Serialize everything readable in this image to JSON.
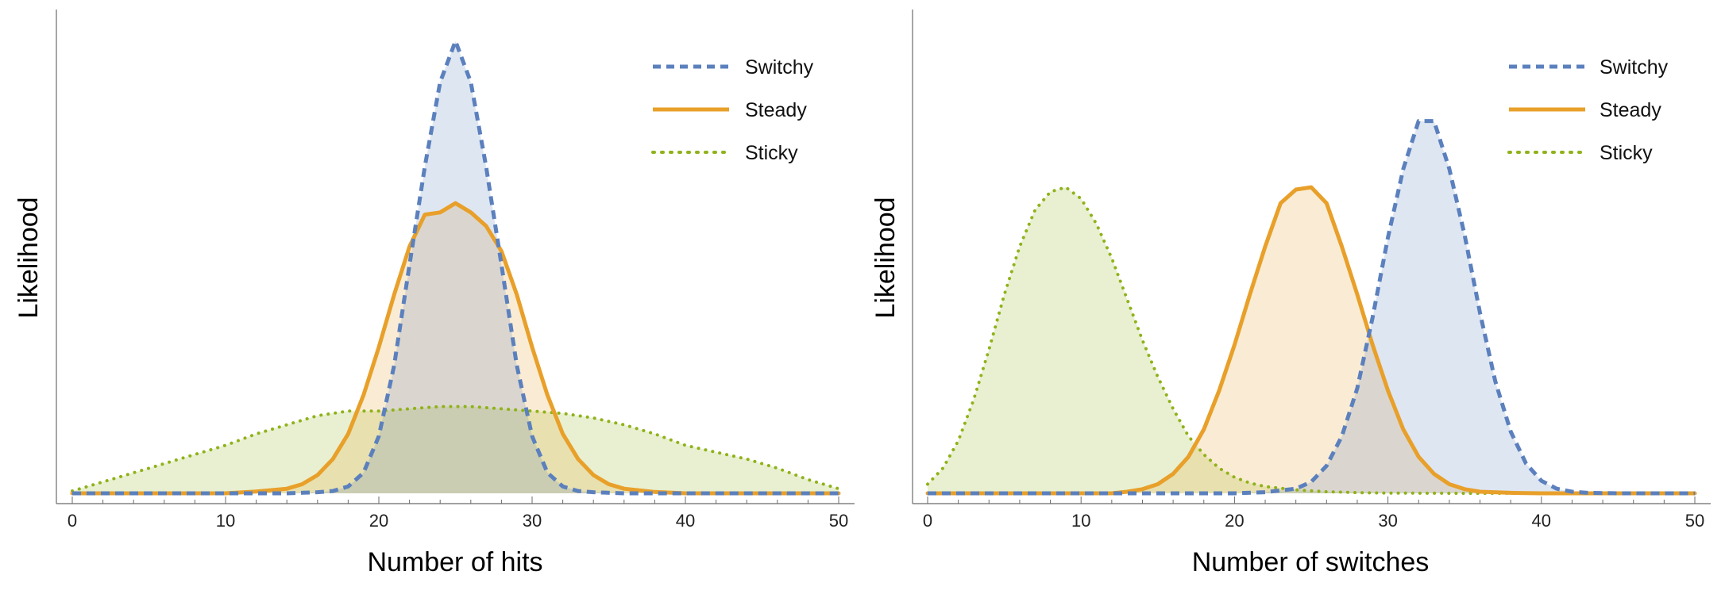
{
  "colors": {
    "switchy": "#5b80bd",
    "steady": "#e8a02a",
    "sticky": "#8fb21a",
    "axis": "#6b6b6b"
  },
  "chart_data": [
    {
      "type": "area",
      "xlabel": "Number of hits",
      "ylabel": "Likelihood",
      "xlim": [
        0,
        50
      ],
      "ylim": [
        0,
        0.2
      ],
      "x_ticks": [
        0,
        10,
        20,
        30,
        40,
        50
      ],
      "y_ticks_shown": false,
      "grid": false,
      "legend_position": "top-right",
      "series": [
        {
          "name": "Switchy",
          "style": "dashed",
          "color": "switchy",
          "x": [
            0,
            14,
            16,
            17,
            18,
            19,
            20,
            21,
            22,
            23,
            24,
            25,
            26,
            27,
            28,
            29,
            30,
            31,
            32,
            33,
            34,
            36,
            50
          ],
          "y": [
            0,
            0,
            0.0005,
            0.001,
            0.003,
            0.009,
            0.025,
            0.056,
            0.1,
            0.143,
            0.18,
            0.198,
            0.18,
            0.143,
            0.1,
            0.056,
            0.025,
            0.009,
            0.003,
            0.001,
            0.0005,
            0,
            0
          ]
        },
        {
          "name": "Steady",
          "style": "solid",
          "color": "steady",
          "x": [
            0,
            10,
            12,
            14,
            15,
            16,
            17,
            18,
            19,
            20,
            21,
            22,
            23,
            24,
            25,
            26,
            27,
            28,
            29,
            30,
            31,
            32,
            33,
            34,
            35,
            36,
            38,
            40,
            50
          ],
          "y": [
            0,
            0,
            0.0008,
            0.002,
            0.004,
            0.008,
            0.015,
            0.026,
            0.043,
            0.064,
            0.087,
            0.108,
            0.122,
            0.123,
            0.127,
            0.123,
            0.117,
            0.106,
            0.087,
            0.064,
            0.043,
            0.026,
            0.015,
            0.008,
            0.004,
            0.002,
            0.0006,
            0,
            0
          ]
        },
        {
          "name": "Sticky",
          "style": "dotted",
          "color": "sticky",
          "x": [
            0,
            2,
            4,
            6,
            8,
            10,
            12,
            14,
            16,
            18,
            20,
            22,
            24,
            26,
            28,
            30,
            32,
            34,
            36,
            38,
            40,
            42,
            44,
            46,
            48,
            50
          ],
          "y": [
            0.001,
            0.005,
            0.009,
            0.013,
            0.017,
            0.021,
            0.026,
            0.03,
            0.034,
            0.036,
            0.036,
            0.037,
            0.038,
            0.038,
            0.037,
            0.036,
            0.035,
            0.033,
            0.03,
            0.026,
            0.021,
            0.018,
            0.015,
            0.011,
            0.006,
            0.002
          ]
        }
      ]
    },
    {
      "type": "area",
      "xlabel": "Number of switches",
      "ylabel": "Likelihood",
      "xlim": [
        0,
        50
      ],
      "ylim": [
        0,
        0.2
      ],
      "x_ticks": [
        0,
        10,
        20,
        30,
        40,
        50
      ],
      "y_ticks_shown": false,
      "grid": false,
      "legend_position": "top-right",
      "series": [
        {
          "name": "Switchy",
          "style": "dashed",
          "color": "switchy",
          "x": [
            0,
            20,
            22,
            24,
            25,
            26,
            27,
            28,
            29,
            30,
            31,
            32,
            33,
            34,
            35,
            36,
            37,
            38,
            39,
            40,
            41,
            42,
            43,
            45,
            50
          ],
          "y": [
            0,
            0,
            0.0005,
            0.002,
            0.005,
            0.012,
            0.025,
            0.046,
            0.077,
            0.112,
            0.142,
            0.163,
            0.163,
            0.142,
            0.113,
            0.079,
            0.049,
            0.027,
            0.013,
            0.0055,
            0.002,
            0.0007,
            0.0002,
            0,
            0
          ]
        },
        {
          "name": "Steady",
          "style": "solid",
          "color": "steady",
          "x": [
            0,
            12,
            13,
            14,
            15,
            16,
            17,
            18,
            19,
            20,
            21,
            22,
            23,
            24,
            25,
            26,
            27,
            28,
            29,
            30,
            31,
            32,
            33,
            34,
            35,
            36,
            38,
            40,
            50
          ],
          "y": [
            0,
            0,
            0.0007,
            0.0018,
            0.004,
            0.0085,
            0.016,
            0.028,
            0.045,
            0.065,
            0.087,
            0.108,
            0.127,
            0.133,
            0.134,
            0.127,
            0.108,
            0.087,
            0.065,
            0.045,
            0.028,
            0.016,
            0.0085,
            0.004,
            0.0018,
            0.0007,
            0.0002,
            0,
            0
          ]
        },
        {
          "name": "Sticky",
          "style": "dotted",
          "color": "sticky",
          "x": [
            0,
            1,
            2,
            3,
            4,
            5,
            6,
            7,
            8,
            9,
            10,
            11,
            12,
            13,
            14,
            15,
            16,
            17,
            18,
            19,
            20,
            21,
            22,
            24,
            26,
            28,
            30,
            35,
            40,
            50
          ],
          "y": [
            0.004,
            0.011,
            0.023,
            0.041,
            0.063,
            0.087,
            0.108,
            0.124,
            0.132,
            0.134,
            0.129,
            0.118,
            0.103,
            0.085,
            0.067,
            0.051,
            0.037,
            0.025,
            0.017,
            0.011,
            0.007,
            0.0045,
            0.003,
            0.0015,
            0.0007,
            0.0003,
            0.0001,
            0,
            0,
            0
          ]
        }
      ]
    }
  ]
}
